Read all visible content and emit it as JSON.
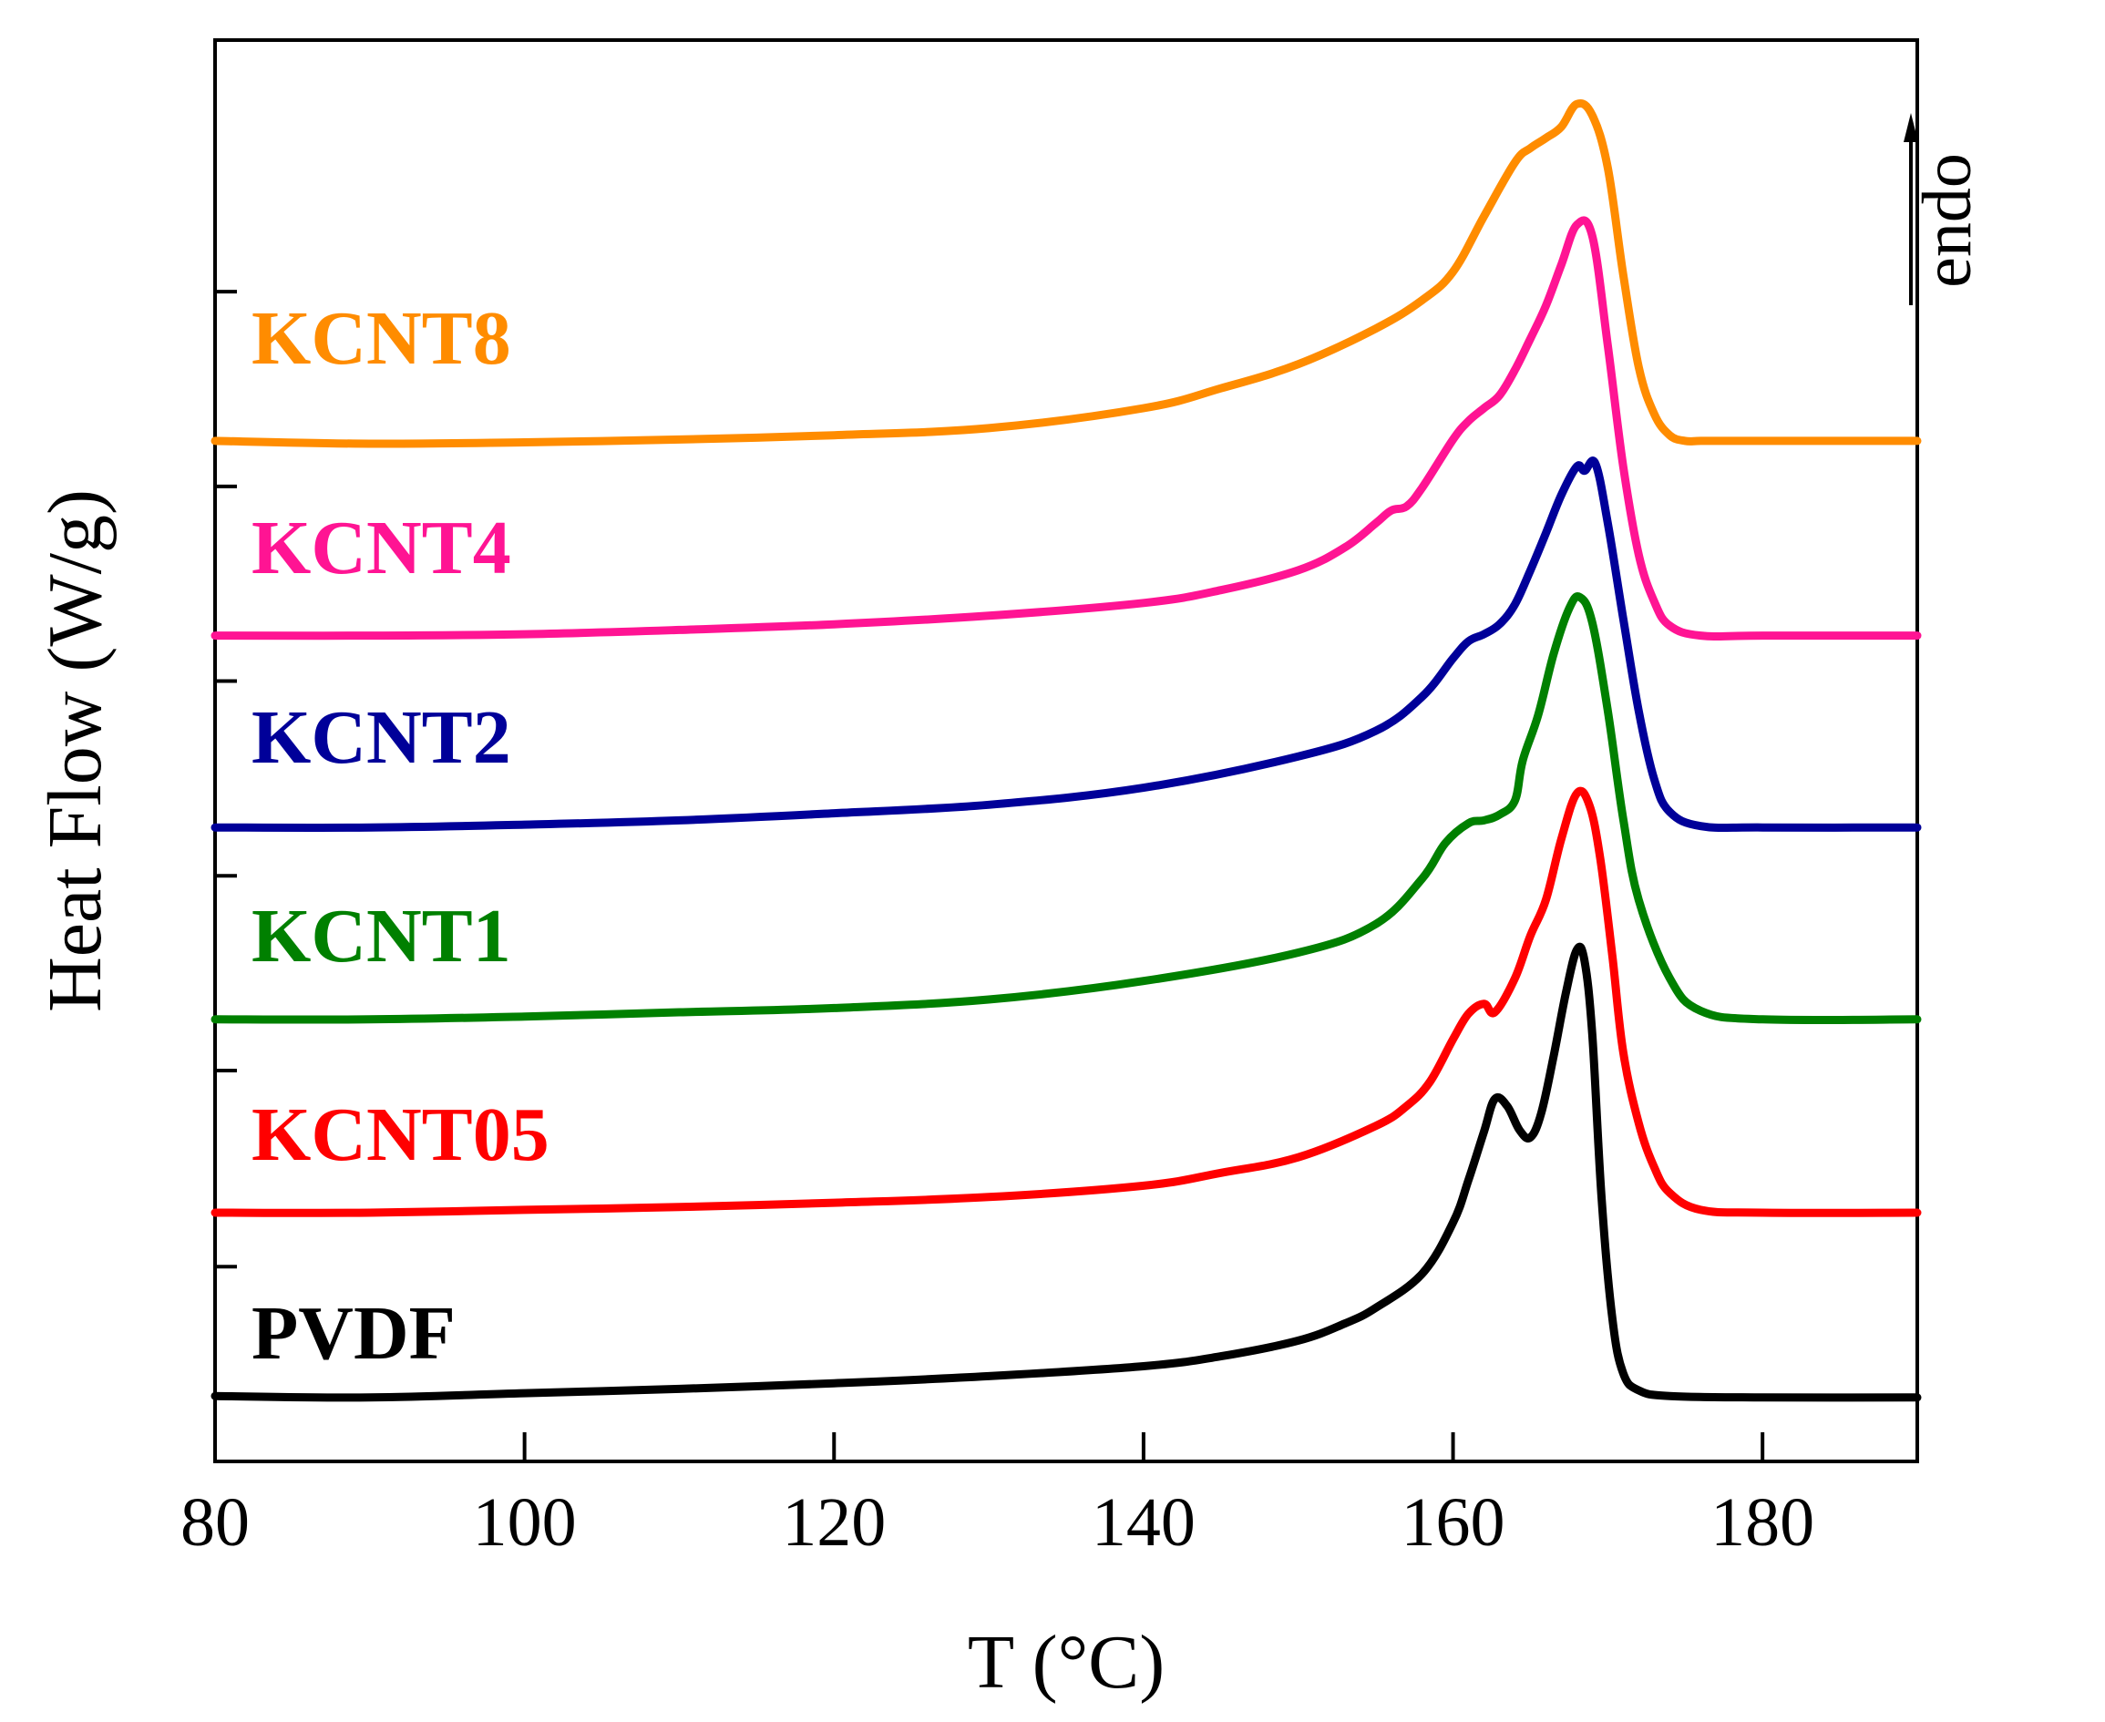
{
  "chart_data": {
    "type": "line",
    "title": "",
    "xlabel": "T (°C)",
    "ylabel": "Heat Flow (W/g)",
    "xlim": [
      80,
      190
    ],
    "ylim": [
      0,
      1
    ],
    "xticks": [
      80,
      100,
      120,
      140,
      160,
      180
    ],
    "annotation": "endo",
    "series": [
      {
        "name": "PVDF",
        "color": "#000000",
        "x": [
          80,
          90,
          100,
          110,
          120,
          130,
          140,
          145,
          150,
          153,
          155,
          158,
          160,
          161,
          162,
          162.7,
          163.5,
          164.3,
          165,
          165.7,
          166.5,
          167.3,
          168,
          168.5,
          169,
          169.6,
          170.3,
          171,
          172,
          174,
          180,
          190
        ],
        "y": [
          0.046,
          0.045,
          0.048,
          0.051,
          0.055,
          0.06,
          0.067,
          0.074,
          0.085,
          0.097,
          0.108,
          0.132,
          0.168,
          0.198,
          0.232,
          0.255,
          0.25,
          0.233,
          0.228,
          0.245,
          0.285,
          0.33,
          0.36,
          0.352,
          0.3,
          0.185,
          0.1,
          0.062,
          0.05,
          0.046,
          0.045,
          0.045
        ]
      },
      {
        "name": "KCNT05",
        "color": "#ff0000",
        "x": [
          80,
          90,
          100,
          110,
          120,
          130,
          140,
          145,
          150,
          155,
          157,
          158.5,
          160,
          161,
          162,
          162.7,
          164,
          165,
          166,
          167,
          168,
          168.8,
          169.5,
          170.3,
          171,
          172,
          173,
          174,
          176,
          180,
          190
        ],
        "y": [
          0.175,
          0.175,
          0.177,
          0.179,
          0.182,
          0.186,
          0.194,
          0.203,
          0.214,
          0.236,
          0.25,
          0.267,
          0.297,
          0.315,
          0.322,
          0.316,
          0.34,
          0.37,
          0.395,
          0.438,
          0.47,
          0.462,
          0.425,
          0.355,
          0.288,
          0.238,
          0.207,
          0.189,
          0.177,
          0.175,
          0.175
        ]
      },
      {
        "name": "KCNT1",
        "color": "#008000",
        "x": [
          80,
          90,
          100,
          110,
          120,
          130,
          140,
          150,
          155,
          158,
          159.5,
          161,
          162,
          163,
          164,
          164.5,
          165.5,
          166.5,
          167.5,
          168.2,
          169,
          170,
          171,
          172,
          174,
          176,
          180,
          190
        ],
        "y": [
          0.311,
          0.311,
          0.313,
          0.316,
          0.319,
          0.325,
          0.338,
          0.358,
          0.378,
          0.41,
          0.435,
          0.449,
          0.451,
          0.455,
          0.465,
          0.493,
          0.525,
          0.568,
          0.6,
          0.608,
          0.59,
          0.528,
          0.452,
          0.395,
          0.34,
          0.317,
          0.311,
          0.311
        ]
      },
      {
        "name": "KCNT2",
        "color": "#000099",
        "x": [
          80,
          90,
          100,
          110,
          120,
          130,
          140,
          150,
          155,
          158,
          160,
          161,
          162,
          163,
          164,
          165,
          166,
          167,
          168,
          168.5,
          169.2,
          170,
          171,
          172,
          173,
          174,
          176,
          180,
          190
        ],
        "y": [
          0.446,
          0.446,
          0.448,
          0.451,
          0.456,
          0.462,
          0.474,
          0.496,
          0.514,
          0.538,
          0.565,
          0.577,
          0.582,
          0.589,
          0.603,
          0.627,
          0.653,
          0.68,
          0.7,
          0.697,
          0.702,
          0.66,
          0.593,
          0.528,
          0.48,
          0.457,
          0.447,
          0.446,
          0.446
        ]
      },
      {
        "name": "KCNT4",
        "color": "#ff1493",
        "x": [
          80,
          90,
          100,
          110,
          120,
          130,
          140,
          145,
          150,
          153,
          155,
          156,
          157,
          158,
          160,
          161,
          162,
          163,
          164,
          165,
          166,
          167,
          168,
          169,
          170,
          171,
          172,
          173,
          174,
          176,
          180,
          190
        ],
        "y": [
          0.581,
          0.581,
          0.582,
          0.585,
          0.589,
          0.595,
          0.604,
          0.613,
          0.627,
          0.643,
          0.66,
          0.669,
          0.672,
          0.685,
          0.719,
          0.732,
          0.741,
          0.75,
          0.768,
          0.79,
          0.813,
          0.842,
          0.87,
          0.862,
          0.785,
          0.7,
          0.638,
          0.605,
          0.588,
          0.581,
          0.581,
          0.581
        ]
      },
      {
        "name": "KCNT8",
        "color": "#ff8c00",
        "x": [
          80,
          90,
          100,
          110,
          120,
          130,
          140,
          145,
          150,
          155,
          158,
          160,
          162,
          164,
          165,
          166,
          167,
          168,
          169,
          170,
          171,
          172,
          173,
          174,
          175,
          176,
          178,
          180,
          190
        ],
        "y": [
          0.718,
          0.716,
          0.717,
          0.719,
          0.722,
          0.727,
          0.741,
          0.755,
          0.772,
          0.797,
          0.817,
          0.837,
          0.876,
          0.914,
          0.924,
          0.931,
          0.939,
          0.955,
          0.947,
          0.91,
          0.835,
          0.77,
          0.737,
          0.722,
          0.718,
          0.718,
          0.718,
          0.718,
          0.718
        ]
      }
    ]
  },
  "labels": {
    "s0": "PVDF",
    "s1": "KCNT05",
    "s2": "KCNT1",
    "s3": "KCNT2",
    "s4": "KCNT4",
    "s5": "KCNT8"
  }
}
